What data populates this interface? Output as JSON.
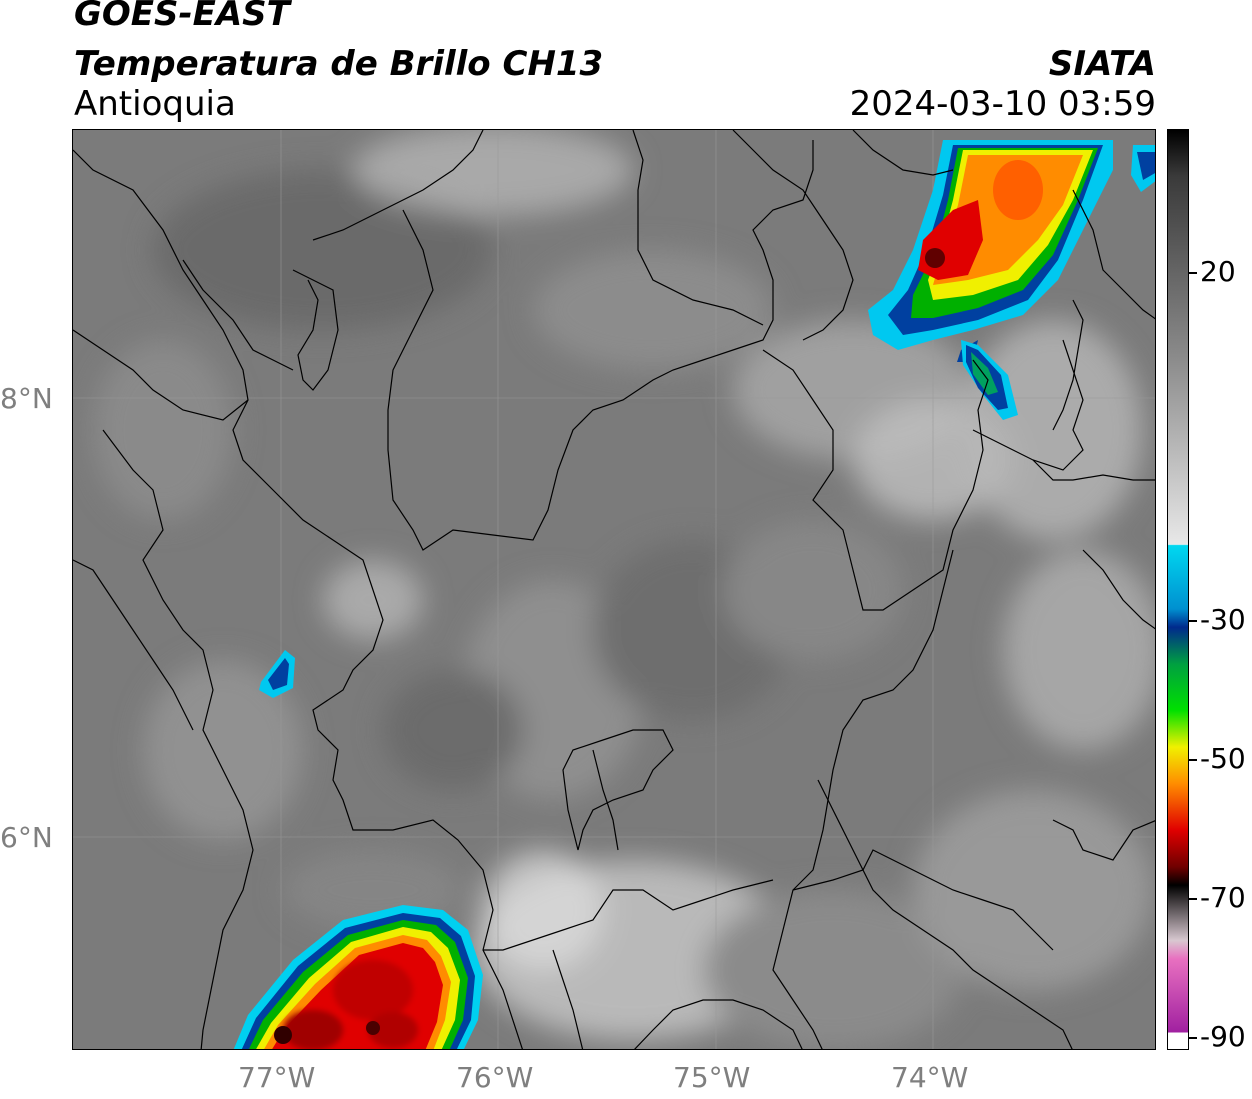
{
  "header": {
    "line1": "GOES-EAST",
    "line2": "Temperatura de Brillo CH13",
    "line3": "Antioquia",
    "org": "SIATA",
    "datetime": "2024-03-10 03:59"
  },
  "axes": {
    "longitudes": [
      "77°W",
      "76°W",
      "75°W",
      "74°W"
    ],
    "latitudes": [
      "8°N",
      "6°N"
    ]
  },
  "colorbar": {
    "ticks": [
      "20",
      "-30",
      "-50",
      "-70",
      "-90"
    ],
    "colors": {
      "cyan": "#00d8f0",
      "blue": "#002a8c",
      "green": "#00b000",
      "yellow": "#f0f000",
      "orange": "#ff8c00",
      "red": "#e00000",
      "black": "#000000",
      "magenta": "#b020b0"
    }
  }
}
